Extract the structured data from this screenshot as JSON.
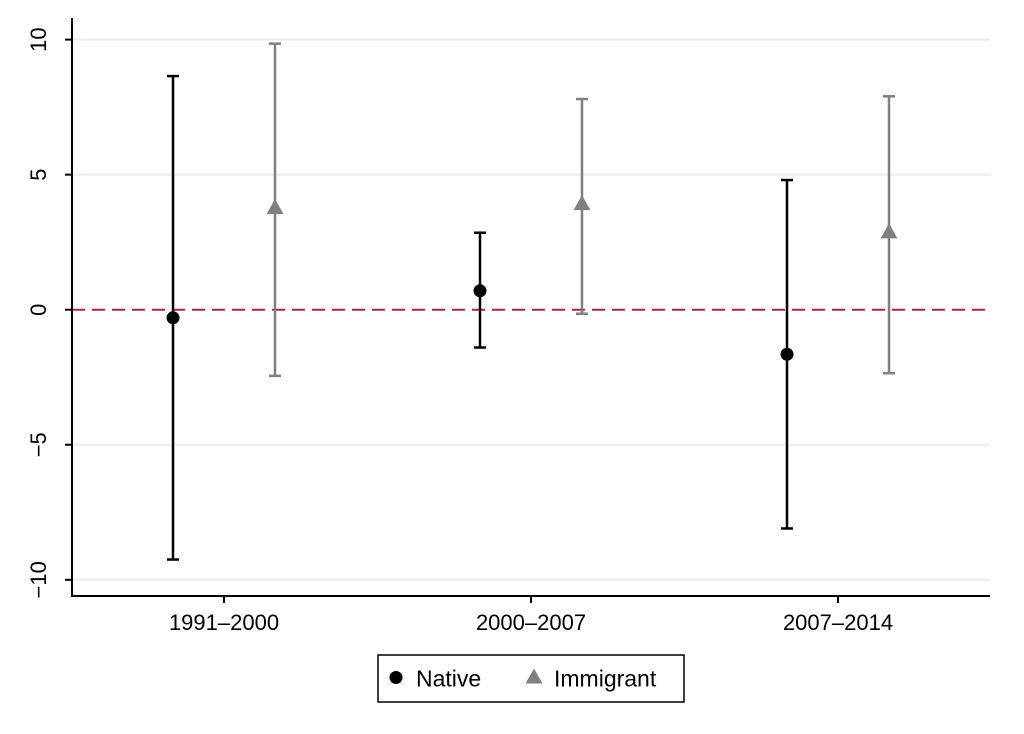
{
  "chart_data": {
    "type": "scatter",
    "subtype": "coefficient-plot-with-confidence-intervals",
    "categories": [
      "1991–2000",
      "2000–2007",
      "2007–2014"
    ],
    "ylim": [
      -10.6,
      10.8
    ],
    "yticks": [
      10,
      5,
      0,
      -5,
      -10
    ],
    "ytick_labels": [
      "10",
      "5",
      "0",
      "−5",
      "−10"
    ],
    "grid": true,
    "reference_line": {
      "y": 0,
      "style": "dashed",
      "color": "#a52a3a"
    },
    "legend": {
      "position": "bottom-center",
      "border": true
    },
    "series": [
      {
        "name": "Native",
        "marker": "circle",
        "color": "#000000",
        "estimates": [
          -0.3,
          0.7,
          -1.65
        ],
        "ci_low": [
          -9.25,
          -1.4,
          -8.1
        ],
        "ci_high": [
          8.65,
          2.85,
          4.8
        ]
      },
      {
        "name": "Immigrant",
        "marker": "triangle",
        "color": "#808080",
        "estimates": [
          3.75,
          3.9,
          2.85
        ],
        "ci_low": [
          -2.45,
          -0.15,
          -2.35
        ],
        "ci_high": [
          9.85,
          7.8,
          7.9
        ]
      }
    ]
  }
}
